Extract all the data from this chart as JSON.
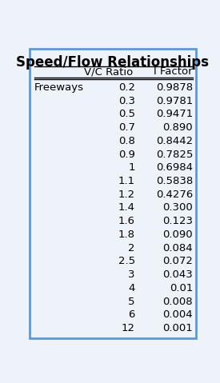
{
  "title": "Speed/Flow Relationships",
  "col_header_left": "V/C Ratio",
  "col_header_right": "I Factor",
  "row_label": "Freeways",
  "vc_ratios": [
    "0.2",
    "0.3",
    "0.5",
    "0.7",
    "0.8",
    "0.9",
    "1",
    "1.1",
    "1.2",
    "1.4",
    "1.6",
    "1.8",
    "2",
    "2.5",
    "3",
    "4",
    "5",
    "6",
    "12"
  ],
  "i_factors": [
    "0.9878",
    "0.9781",
    "0.9471",
    "0.890",
    "0.8442",
    "0.7825",
    "0.6984",
    "0.5838",
    "0.4276",
    "0.300",
    "0.123",
    "0.090",
    "0.084",
    "0.072",
    "0.043",
    "0.01",
    "0.008",
    "0.004",
    "0.001"
  ],
  "bg_color": "#eef2f9",
  "border_color": "#5b9bd5",
  "title_fontsize": 12,
  "header_fontsize": 9.5,
  "data_fontsize": 9.5,
  "label_fontsize": 9.5
}
